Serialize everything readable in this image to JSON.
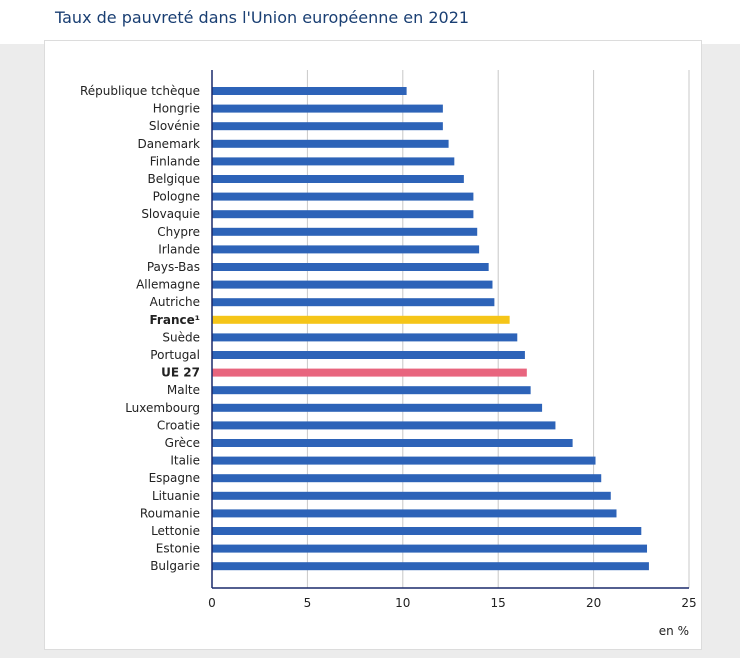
{
  "title": "Taux de pauvreté dans l'Union européenne en 2021",
  "chart_data": {
    "type": "bar",
    "orientation": "horizontal",
    "categories": [
      "République tchèque",
      "Hongrie",
      "Slovénie",
      "Danemark",
      "Finlande",
      "Belgique",
      "Pologne",
      "Slovaquie",
      "Chypre",
      "Irlande",
      "Pays-Bas",
      "Allemagne",
      "Autriche",
      "France¹",
      "Suède",
      "Portugal",
      "UE 27",
      "Malte",
      "Luxembourg",
      "Croatie",
      "Grèce",
      "Italie",
      "Espagne",
      "Lituanie",
      "Roumanie",
      "Lettonie",
      "Estonie",
      "Bulgarie"
    ],
    "values": [
      10.2,
      12.1,
      12.1,
      12.4,
      12.7,
      13.2,
      13.7,
      13.7,
      13.9,
      14.0,
      14.5,
      14.7,
      14.8,
      15.6,
      16.0,
      16.4,
      16.5,
      16.7,
      17.3,
      18.0,
      18.9,
      20.1,
      20.4,
      20.9,
      21.2,
      22.5,
      22.8,
      22.9
    ],
    "highlight": {
      "France¹": "#f5c518",
      "UE 27": "#e8657e"
    },
    "bold_categories": [
      "France¹",
      "UE 27"
    ],
    "bar_color": "#2d63b8",
    "xlim": [
      0,
      25
    ],
    "xticks": [
      0,
      5,
      10,
      15,
      20,
      25
    ],
    "xunit": "en %",
    "grid": "vertical"
  }
}
